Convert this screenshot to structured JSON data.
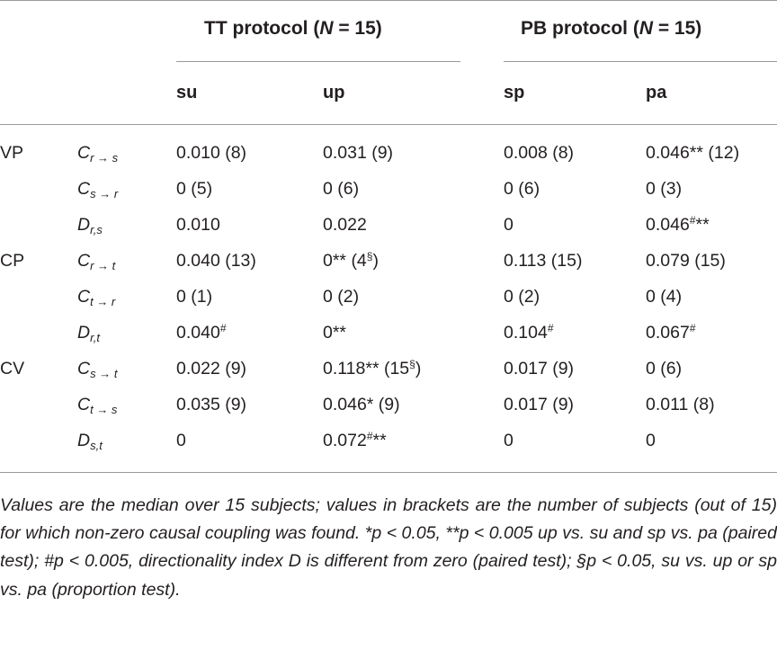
{
  "groups": [
    {
      "title": "TT protocol (",
      "n": "N",
      "rest": " = 15)"
    },
    {
      "title": "PB protocol (",
      "n": "N",
      "rest": " = 15)"
    }
  ],
  "columns": [
    "su",
    "up",
    "sp",
    "pa"
  ],
  "rows": [
    {
      "group": "VP",
      "symbol": "C",
      "subscript": "r → s",
      "cells": [
        "0.010 (8)",
        "0.031 (9)",
        "0.008 (8)",
        "0.046** (12)"
      ]
    },
    {
      "group": "",
      "symbol": "C",
      "subscript": "s → r",
      "cells": [
        "0 (5)",
        "0 (6)",
        "0 (6)",
        "0 (3)"
      ]
    },
    {
      "group": "",
      "symbol": "D",
      "subscript": "r,s",
      "cells": [
        "0.010",
        "0.022",
        "0",
        "0.046#**"
      ]
    },
    {
      "group": "CP",
      "symbol": "C",
      "subscript": "r → t",
      "cells": [
        "0.040 (13)",
        "0** (4§)",
        "0.113 (15)",
        "0.079 (15)"
      ]
    },
    {
      "group": "",
      "symbol": "C",
      "subscript": "t → r",
      "cells": [
        "0 (1)",
        "0 (2)",
        "0 (2)",
        "0 (4)"
      ]
    },
    {
      "group": "",
      "symbol": "D",
      "subscript": "r,t",
      "cells": [
        "0.040#",
        "0**",
        "0.104#",
        "0.067#"
      ]
    },
    {
      "group": "CV",
      "symbol": "C",
      "subscript": "s → t",
      "cells": [
        "0.022 (9)",
        "0.118** (15§)",
        "0.017 (9)",
        "0 (6)"
      ]
    },
    {
      "group": "",
      "symbol": "C",
      "subscript": "t → s",
      "cells": [
        "0.035 (9)",
        "0.046* (9)",
        "0.017 (9)",
        "0.011 (8)"
      ]
    },
    {
      "group": "",
      "symbol": "D",
      "subscript": "s,t",
      "cells": [
        "0",
        "0.072#**",
        "0",
        "0"
      ]
    }
  ],
  "footnote": "Values are the median over 15 subjects; values in brackets are the number of subjects (out of 15) for which non-zero causal coupling was found. *p < 0.05, **p < 0.005 up vs. su and sp vs. pa (paired test); #p < 0.005, directionality index D is different from zero (paired test); §p < 0.05, su vs. up or sp vs. pa (proportion test)."
}
